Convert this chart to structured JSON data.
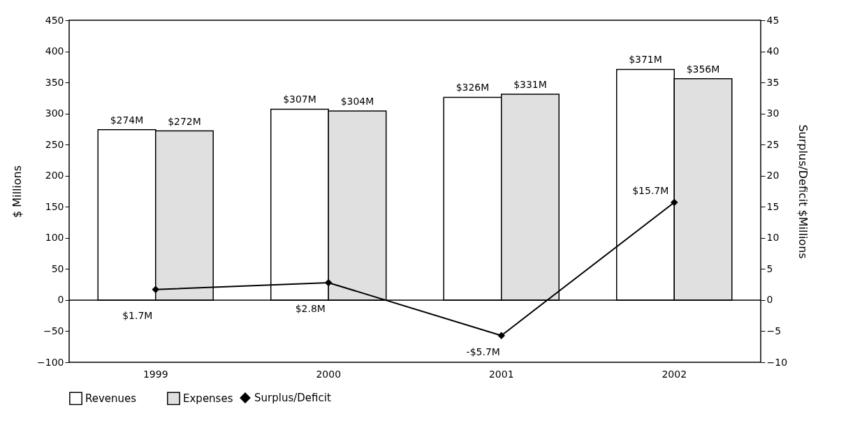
{
  "chart_data": {
    "type": "bar",
    "categories": [
      "1999",
      "2000",
      "2001",
      "2002"
    ],
    "ylabel": "$ Millions",
    "y2label": "Surplus/Deficit $Millions",
    "ylim": [
      -100,
      450
    ],
    "yticks": [
      -100,
      -50,
      0,
      50,
      100,
      150,
      200,
      250,
      300,
      350,
      400,
      450
    ],
    "y2lim": [
      -10,
      45
    ],
    "y2ticks": [
      -10,
      -5,
      0,
      5,
      10,
      15,
      20,
      25,
      30,
      35,
      40,
      45
    ],
    "series": [
      {
        "name": "Revenues",
        "color": "#ffffff",
        "values": [
          274,
          307,
          326,
          371
        ],
        "value_labels": [
          "$274M",
          "$307M",
          "$326M",
          "$371M"
        ]
      },
      {
        "name": "Expenses",
        "color": "#e0e0e0",
        "values": [
          272,
          304,
          331,
          356
        ],
        "value_labels": [
          "$272M",
          "$304M",
          "$331M",
          "$356M"
        ]
      },
      {
        "name": "Surplus/Deficit",
        "type": "line",
        "axis": "y2",
        "color": "#000000",
        "values": [
          1.7,
          2.8,
          -5.7,
          15.7
        ],
        "value_labels": [
          "$1.7M",
          "$2.8M",
          "-$5.7M",
          "$15.7M"
        ]
      }
    ],
    "ref_lines": [
      {
        "axis": "y",
        "value": 0,
        "color": "#000000"
      }
    ],
    "marker": "diamond",
    "line_style": "solid",
    "grid": false,
    "legend": "bottom"
  }
}
